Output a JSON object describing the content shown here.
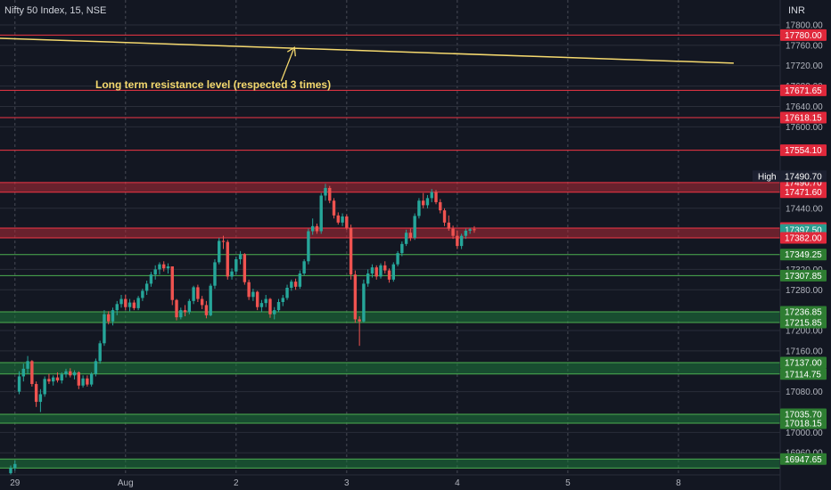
{
  "header": {
    "symbol": "Nifty 50 Index, 15, NSE",
    "currency": "INR"
  },
  "colors": {
    "background": "#131722",
    "grid": "#2a2e39",
    "axis_text": "#b2b5be",
    "up": "#26a69a",
    "down": "#ef5350",
    "res_line": "#f23645",
    "sup_line": "#4caf50",
    "res_zone": "#b02a37",
    "sup_zone": "#1e7a3c",
    "trend": "#f5d96e",
    "session_dash": "#5d606b"
  },
  "chart_data": {
    "type": "candlestick",
    "title": "Nifty 50 Index, 15, NSE",
    "ylim": [
      16920,
      17820
    ],
    "y_ticks": [
      17800.0,
      17760.0,
      17720.0,
      17680.0,
      17640.0,
      17600.0,
      17440.0,
      17320.0,
      17280.0,
      17200.0,
      17160.0,
      17080.0,
      17000.0,
      16960.0
    ],
    "x_labels": [
      {
        "label": "29",
        "bar": 1
      },
      {
        "label": "Aug",
        "bar": 27
      },
      {
        "label": "2",
        "bar": 53
      },
      {
        "label": "3",
        "bar": 79
      },
      {
        "label": "4",
        "bar": 105
      },
      {
        "label": "5",
        "bar": 131
      },
      {
        "label": "8",
        "bar": 157
      }
    ],
    "resistance_lines": [
      17780.0,
      17671.65,
      17618.15,
      17554.1
    ],
    "support_lines": [
      17349.25,
      17307.85
    ],
    "zones": [
      {
        "kind": "resistance",
        "from": 17471.6,
        "to": 17490.7
      },
      {
        "kind": "resistance",
        "from": 17382.0,
        "to": 17401.15
      },
      {
        "kind": "support",
        "from": 17215.85,
        "to": 17236.85
      },
      {
        "kind": "support",
        "from": 17114.75,
        "to": 17137.0
      },
      {
        "kind": "support",
        "from": 17018.15,
        "to": 17035.7
      },
      {
        "kind": "support",
        "from": 16930.0,
        "to": 16947.65
      }
    ],
    "price_labels": [
      {
        "value": 17780.0,
        "text": "17780.00",
        "kind": "res"
      },
      {
        "value": 17671.65,
        "text": "17671.65",
        "kind": "res"
      },
      {
        "value": 17618.15,
        "text": "17618.15",
        "kind": "res"
      },
      {
        "value": 17554.1,
        "text": "17554.10",
        "kind": "res"
      },
      {
        "value": 17490.7,
        "text": "17490.70",
        "kind": "res"
      },
      {
        "value": 17471.6,
        "text": "17471.60",
        "kind": "res"
      },
      {
        "value": 17401.15,
        "text": "17401.15",
        "kind": "res"
      },
      {
        "value": 17397.5,
        "text": "17397.50",
        "kind": "cur"
      },
      {
        "value": 17382.0,
        "text": "17382.00",
        "kind": "res"
      },
      {
        "value": 17349.25,
        "text": "17349.25",
        "kind": "sup"
      },
      {
        "value": 17307.85,
        "text": "17307.85",
        "kind": "sup"
      },
      {
        "value": 17236.85,
        "text": "17236.85",
        "kind": "sup"
      },
      {
        "value": 17215.85,
        "text": "17215.85",
        "kind": "sup"
      },
      {
        "value": 17137.0,
        "text": "17137.00",
        "kind": "sup"
      },
      {
        "value": 17114.75,
        "text": "17114.75",
        "kind": "sup"
      },
      {
        "value": 17035.7,
        "text": "17035.70",
        "kind": "sup"
      },
      {
        "value": 17018.15,
        "text": "17018.15",
        "kind": "sup"
      },
      {
        "value": 16947.65,
        "text": "16947.65",
        "kind": "sup"
      }
    ],
    "high_label": {
      "text": "High",
      "value": 17490.7,
      "value_text": "17490.70"
    },
    "trendline": {
      "from": {
        "bar": -3,
        "value": 17774
      },
      "to": {
        "bar": 170,
        "value": 17725
      }
    },
    "annotation": {
      "text": "Long term resistance level (respected 3 times)",
      "bar": 64,
      "value": 17672
    },
    "ohlc": [
      [
        16920,
        16935,
        16905,
        16930
      ],
      [
        16930,
        16945,
        16925,
        16938
      ],
      [
        17080,
        17120,
        17075,
        17110
      ],
      [
        17110,
        17135,
        17100,
        17125
      ],
      [
        17125,
        17150,
        17115,
        17140
      ],
      [
        17140,
        17142,
        17090,
        17095
      ],
      [
        17095,
        17100,
        17050,
        17060
      ],
      [
        17060,
        17085,
        17040,
        17075
      ],
      [
        17075,
        17110,
        17070,
        17105
      ],
      [
        17105,
        17115,
        17095,
        17100
      ],
      [
        17100,
        17112,
        17092,
        17108
      ],
      [
        17108,
        17118,
        17098,
        17102
      ],
      [
        17102,
        17118,
        17096,
        17114
      ],
      [
        17114,
        17125,
        17108,
        17120
      ],
      [
        17120,
        17126,
        17108,
        17112
      ],
      [
        17112,
        17122,
        17104,
        17118
      ],
      [
        17118,
        17120,
        17085,
        17092
      ],
      [
        17092,
        17112,
        17088,
        17106
      ],
      [
        17106,
        17112,
        17090,
        17094
      ],
      [
        17094,
        17118,
        17090,
        17115
      ],
      [
        17115,
        17145,
        17110,
        17140
      ],
      [
        17140,
        17180,
        17135,
        17175
      ],
      [
        17175,
        17240,
        17170,
        17232
      ],
      [
        17232,
        17238,
        17212,
        17218
      ],
      [
        17218,
        17245,
        17210,
        17240
      ],
      [
        17240,
        17258,
        17230,
        17252
      ],
      [
        17252,
        17270,
        17245,
        17262
      ],
      [
        17262,
        17270,
        17240,
        17246
      ],
      [
        17246,
        17262,
        17238,
        17255
      ],
      [
        17255,
        17260,
        17240,
        17244
      ],
      [
        17244,
        17268,
        17240,
        17264
      ],
      [
        17264,
        17282,
        17258,
        17278
      ],
      [
        17278,
        17298,
        17270,
        17292
      ],
      [
        17292,
        17315,
        17286,
        17310
      ],
      [
        17310,
        17328,
        17300,
        17320
      ],
      [
        17320,
        17334,
        17310,
        17330
      ],
      [
        17330,
        17336,
        17316,
        17322
      ],
      [
        17322,
        17332,
        17312,
        17326
      ],
      [
        17326,
        17322,
        17250,
        17260
      ],
      [
        17260,
        17262,
        17220,
        17226
      ],
      [
        17226,
        17245,
        17222,
        17240
      ],
      [
        17240,
        17250,
        17228,
        17236
      ],
      [
        17236,
        17262,
        17232,
        17258
      ],
      [
        17258,
        17288,
        17252,
        17285
      ],
      [
        17285,
        17290,
        17256,
        17262
      ],
      [
        17262,
        17268,
        17242,
        17250
      ],
      [
        17250,
        17258,
        17224,
        17230
      ],
      [
        17230,
        17292,
        17228,
        17288
      ],
      [
        17288,
        17340,
        17282,
        17334
      ],
      [
        17334,
        17382,
        17330,
        17376
      ],
      [
        17376,
        17386,
        17360,
        17374
      ],
      [
        17374,
        17378,
        17300,
        17306
      ],
      [
        17306,
        17322,
        17300,
        17316
      ],
      [
        17316,
        17345,
        17310,
        17340
      ],
      [
        17340,
        17356,
        17330,
        17350
      ],
      [
        17350,
        17352,
        17290,
        17295
      ],
      [
        17295,
        17300,
        17260,
        17266
      ],
      [
        17266,
        17282,
        17258,
        17276
      ],
      [
        17276,
        17278,
        17240,
        17246
      ],
      [
        17246,
        17260,
        17236,
        17254
      ],
      [
        17254,
        17270,
        17246,
        17262
      ],
      [
        17262,
        17264,
        17225,
        17232
      ],
      [
        17232,
        17246,
        17222,
        17240
      ],
      [
        17240,
        17262,
        17236,
        17256
      ],
      [
        17256,
        17270,
        17248,
        17264
      ],
      [
        17264,
        17290,
        17260,
        17284
      ],
      [
        17284,
        17300,
        17278,
        17296
      ],
      [
        17296,
        17302,
        17280,
        17286
      ],
      [
        17286,
        17318,
        17282,
        17312
      ],
      [
        17312,
        17340,
        17308,
        17336
      ],
      [
        17336,
        17400,
        17330,
        17395
      ],
      [
        17395,
        17420,
        17388,
        17405
      ],
      [
        17405,
        17410,
        17390,
        17395
      ],
      [
        17395,
        17470,
        17390,
        17465
      ],
      [
        17465,
        17488,
        17455,
        17480
      ],
      [
        17480,
        17484,
        17450,
        17455
      ],
      [
        17455,
        17460,
        17420,
        17426
      ],
      [
        17426,
        17432,
        17408,
        17412
      ],
      [
        17412,
        17430,
        17405,
        17424
      ],
      [
        17424,
        17428,
        17398,
        17402
      ],
      [
        17402,
        17408,
        17300,
        17310
      ],
      [
        17310,
        17318,
        17215,
        17222
      ],
      [
        17222,
        17228,
        17170,
        17218
      ],
      [
        17218,
        17300,
        17215,
        17292
      ],
      [
        17292,
        17320,
        17286,
        17312
      ],
      [
        17312,
        17330,
        17304,
        17324
      ],
      [
        17324,
        17328,
        17300,
        17306
      ],
      [
        17306,
        17332,
        17302,
        17328
      ],
      [
        17328,
        17336,
        17312,
        17318
      ],
      [
        17318,
        17322,
        17294,
        17300
      ],
      [
        17300,
        17334,
        17296,
        17330
      ],
      [
        17330,
        17356,
        17326,
        17352
      ],
      [
        17352,
        17375,
        17346,
        17370
      ],
      [
        17370,
        17398,
        17366,
        17392
      ],
      [
        17392,
        17400,
        17376,
        17382
      ],
      [
        17382,
        17430,
        17378,
        17425
      ],
      [
        17425,
        17460,
        17420,
        17455
      ],
      [
        17455,
        17470,
        17440,
        17446
      ],
      [
        17446,
        17466,
        17440,
        17460
      ],
      [
        17460,
        17478,
        17452,
        17472
      ],
      [
        17472,
        17476,
        17448,
        17452
      ],
      [
        17452,
        17458,
        17430,
        17436
      ],
      [
        17436,
        17440,
        17405,
        17412
      ],
      [
        17412,
        17426,
        17396,
        17400
      ],
      [
        17400,
        17406,
        17380,
        17386
      ],
      [
        17386,
        17396,
        17360,
        17366
      ],
      [
        17366,
        17390,
        17360,
        17386
      ],
      [
        17386,
        17400,
        17380,
        17396
      ],
      [
        17396,
        17402,
        17390,
        17399
      ],
      [
        17399,
        17405,
        17392,
        17397
      ]
    ]
  }
}
